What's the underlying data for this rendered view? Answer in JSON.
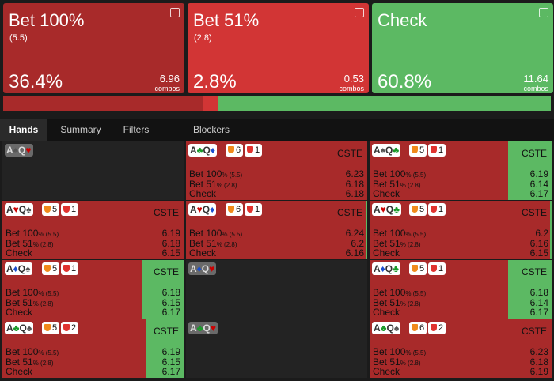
{
  "actions": [
    {
      "name": "Bet 100%",
      "size": "(5.5)",
      "frequency": {
        "value": 36.4,
        "label": "36.4%"
      },
      "combos": "6.96",
      "combos_label": "combos",
      "color": "#a82a2a"
    },
    {
      "name": "Bet 51%",
      "size": "(2.8)",
      "frequency": {
        "value": 2.8,
        "label": "2.8%"
      },
      "combos": "0.53",
      "combos_label": "combos",
      "color": "#d23535"
    },
    {
      "name": "Check",
      "frequency": {
        "value": 60.8,
        "label": "60.8%"
      },
      "combos": "11.64",
      "combos_label": "combos",
      "color": "#5cb963"
    }
  ],
  "tabs": [
    "Hands",
    "Summary",
    "Filters",
    "Blockers"
  ],
  "cell_actions": [
    {
      "name": "Bet 100",
      "size": "% (5.5)"
    },
    {
      "name": "Bet 51",
      "size": "% (2.8)"
    },
    {
      "name": "Check"
    }
  ],
  "cell_tag": "CSTE",
  "hands": {
    "rows": [
      {
        "cells": [
          {
            "cards": [
              {
                "rank": "A",
                "suit": "♠"
              },
              {
                "rank": "Q",
                "suit": "♥"
              }
            ]
          },
          {
            "cards": [
              {
                "rank": "A",
                "suit": "♣"
              },
              {
                "rank": "Q",
                "suit": "♦"
              }
            ],
            "badges": [
              6,
              1
            ],
            "values": [
              "6.23",
              "6.18",
              "6.18"
            ],
            "check_pct": 0
          },
          {
            "cards": [
              {
                "rank": "A",
                "suit": "♠"
              },
              {
                "rank": "Q",
                "suit": "♣"
              }
            ],
            "badges": [
              5,
              1
            ],
            "values": [
              "6.19",
              "6.14",
              "6.17"
            ],
            "check_pct": 24
          }
        ]
      },
      {
        "cells": [
          {
            "cards": [
              {
                "rank": "A",
                "suit": "♥"
              },
              {
                "rank": "Q",
                "suit": "♠"
              }
            ],
            "badges": [
              5,
              1
            ],
            "values": [
              "6.19",
              "6.18",
              "6.15"
            ],
            "check_pct": 0
          },
          {
            "cards": [
              {
                "rank": "A",
                "suit": "♥"
              },
              {
                "rank": "Q",
                "suit": "♦"
              }
            ],
            "badges": [
              6,
              1
            ],
            "values": [
              "6.24",
              "6.2",
              "6.16"
            ],
            "check_pct": 1
          },
          {
            "cards": [
              {
                "rank": "A",
                "suit": "♥"
              },
              {
                "rank": "Q",
                "suit": "♣"
              }
            ],
            "badges": [
              5,
              1
            ],
            "values": [
              "6.2",
              "6.16",
              "6.15"
            ],
            "check_pct": 1
          }
        ]
      },
      {
        "cells": [
          {
            "cards": [
              {
                "rank": "A",
                "suit": "♦"
              },
              {
                "rank": "Q",
                "suit": "♠"
              }
            ],
            "badges": [
              5,
              1
            ],
            "values": [
              "6.18",
              "6.15",
              "6.17"
            ],
            "check_pct": 23
          },
          {
            "cards": [
              {
                "rank": "A",
                "suit": "♦"
              },
              {
                "rank": "Q",
                "suit": "♥"
              }
            ]
          },
          {
            "cards": [
              {
                "rank": "A",
                "suit": "♦"
              },
              {
                "rank": "Q",
                "suit": "♣"
              }
            ],
            "badges": [
              5,
              1
            ],
            "values": [
              "6.18",
              "6.14",
              "6.17"
            ],
            "check_pct": 24
          }
        ]
      },
      {
        "cells": [
          {
            "cards": [
              {
                "rank": "A",
                "suit": "♣"
              },
              {
                "rank": "Q",
                "suit": "♠"
              }
            ],
            "badges": [
              5,
              2
            ],
            "values": [
              "6.19",
              "6.15",
              "6.17"
            ],
            "check_pct": 21
          },
          {
            "cards": [
              {
                "rank": "A",
                "suit": "♣"
              },
              {
                "rank": "Q",
                "suit": "♥"
              }
            ]
          },
          {
            "cards": [
              {
                "rank": "A",
                "suit": "♣"
              },
              {
                "rank": "Q",
                "suit": "♠"
              }
            ],
            "badges": [
              6,
              2
            ],
            "values": [
              "6.23",
              "6.18",
              "6.19"
            ],
            "check_pct": 0
          }
        ]
      }
    ]
  }
}
